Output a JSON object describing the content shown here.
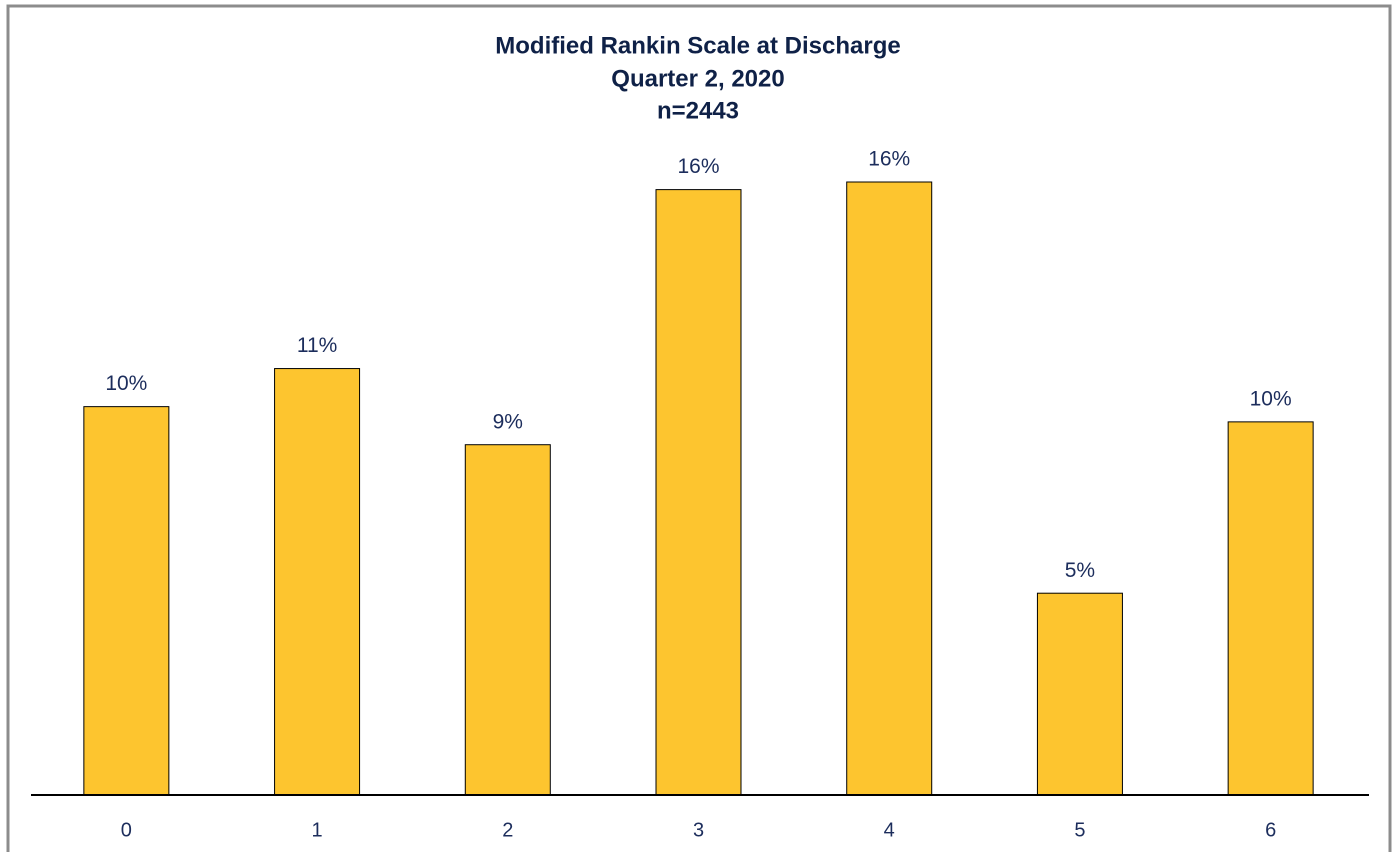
{
  "chart_data": {
    "type": "bar",
    "title": "Modified Rankin Scale at Discharge",
    "subtitle": "Quarter 2, 2020",
    "annotation": "n=2443",
    "categories": [
      "0",
      "1",
      "2",
      "3",
      "4",
      "5",
      "6"
    ],
    "values": [
      10.2,
      11.2,
      9.2,
      15.9,
      16.1,
      5.3,
      9.8
    ],
    "value_labels": [
      "10%",
      "11%",
      "9%",
      "16%",
      "16%",
      "5%",
      "10%"
    ],
    "color": "#fdc52f"
  }
}
